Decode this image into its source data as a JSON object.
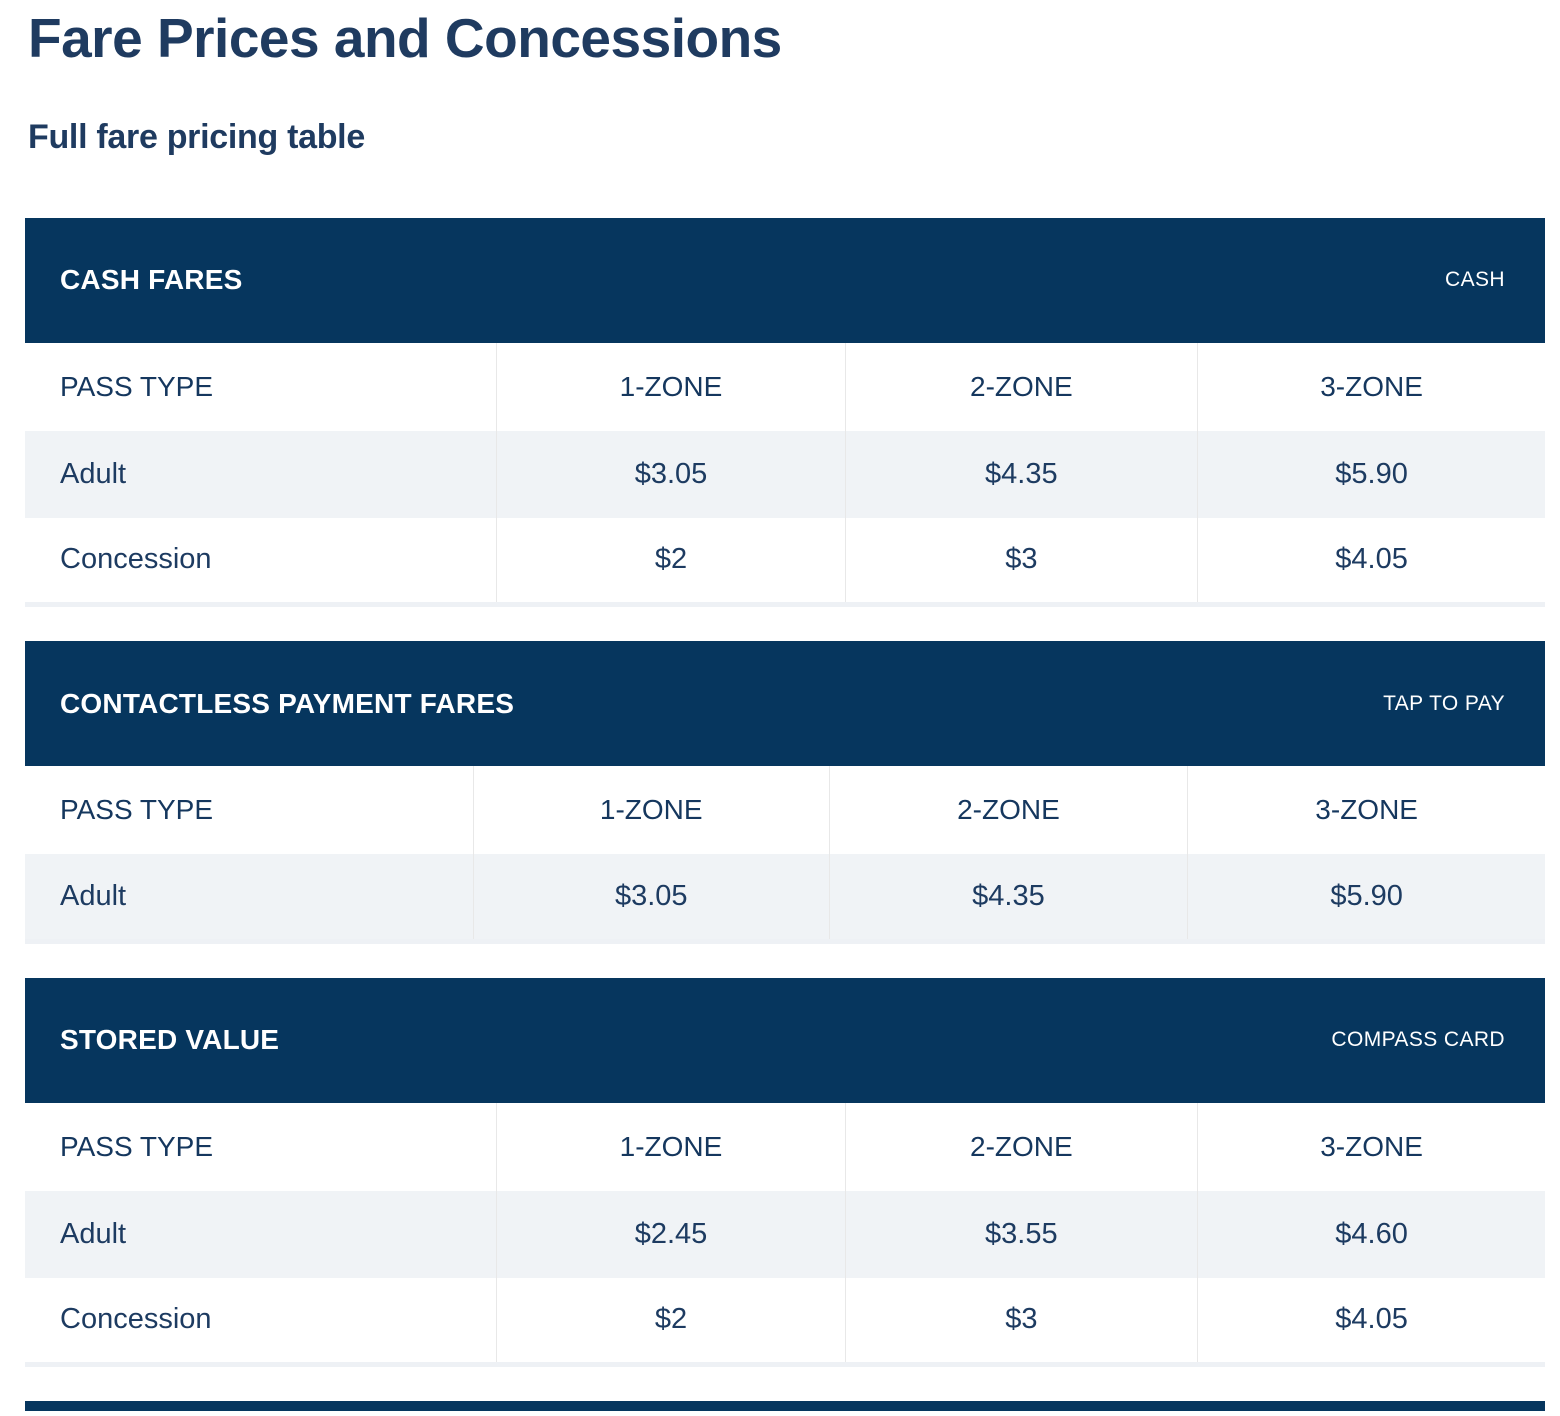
{
  "page": {
    "title": "Fare Prices and Concessions",
    "subtitle": "Full fare pricing table"
  },
  "tables": [
    {
      "title": "CASH FARES",
      "badge": "CASH",
      "columns": [
        "PASS TYPE",
        "1-ZONE",
        "2-ZONE",
        "3-ZONE"
      ],
      "rows": [
        {
          "label": "Adult",
          "values": [
            "$3.05",
            "$4.35",
            "$5.90"
          ]
        },
        {
          "label": "Concession",
          "values": [
            "$2",
            "$3",
            "$4.05"
          ]
        }
      ]
    },
    {
      "title": "CONTACTLESS PAYMENT FARES",
      "badge": "TAP TO PAY",
      "columns": [
        "PASS TYPE",
        "1-ZONE",
        "2-ZONE",
        "3-ZONE"
      ],
      "rows": [
        {
          "label": "Adult",
          "values": [
            "$3.05",
            "$4.35",
            "$5.90"
          ]
        }
      ]
    },
    {
      "title": "STORED VALUE",
      "badge": "COMPASS CARD",
      "columns": [
        "PASS TYPE",
        "1-ZONE",
        "2-ZONE",
        "3-ZONE"
      ],
      "rows": [
        {
          "label": "Adult",
          "values": [
            "$2.45",
            "$3.55",
            "$4.60"
          ]
        },
        {
          "label": "Concession",
          "values": [
            "$2",
            "$3",
            "$4.05"
          ]
        }
      ]
    }
  ],
  "colors": {
    "header_navy": "#06365e",
    "text_navy": "#1d3b61",
    "row_alt": "#f0f3f6",
    "column_separator": "#e8e8e8",
    "table_bottom_border": "#eef1f5"
  }
}
